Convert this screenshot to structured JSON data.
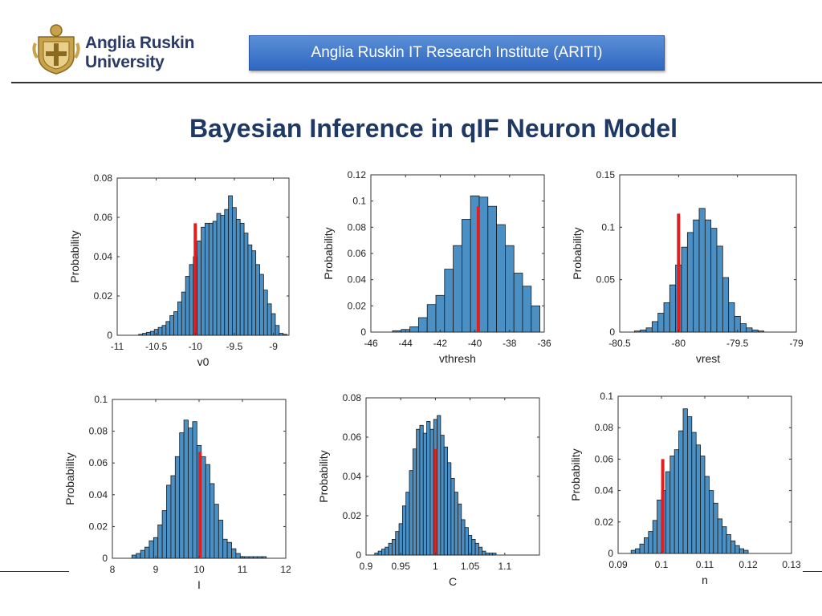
{
  "header": {
    "university": "Anglia Ruskin University",
    "university_line1": "Anglia Ruskin",
    "university_line2": "University",
    "banner": "Anglia Ruskin IT Research Institute (ARITI)"
  },
  "slide_title": "Bayesian Inference in qIF Neuron Model",
  "colors": {
    "bar_fill": "#4a90c4",
    "bar_edge": "#1a1a1a",
    "true_value": "#e02020",
    "title": "#1f3864"
  },
  "chart_data": [
    {
      "type": "bar",
      "xlabel": "v0",
      "ylabel": "Probability",
      "xlim": [
        -11,
        -8.8
      ],
      "ylim": [
        0,
        0.08
      ],
      "xticks": [
        -11,
        -10.5,
        -10,
        -9.5,
        -9
      ],
      "yticks": [
        0,
        0.02,
        0.04,
        0.06,
        0.08
      ],
      "bins": [
        -10.7,
        -10.65,
        -10.6,
        -10.55,
        -10.5,
        -10.45,
        -10.4,
        -10.35,
        -10.3,
        -10.25,
        -10.2,
        -10.15,
        -10.1,
        -10.05,
        -10.0,
        -9.95,
        -9.9,
        -9.85,
        -9.8,
        -9.75,
        -9.7,
        -9.65,
        -9.6,
        -9.55,
        -9.5,
        -9.45,
        -9.4,
        -9.35,
        -9.3,
        -9.25,
        -9.2,
        -9.15,
        -9.1,
        -9.05,
        -9.0,
        -8.95,
        -8.9,
        -8.85
      ],
      "bin_width": 0.05,
      "values": [
        0.0005,
        0.001,
        0.0015,
        0.002,
        0.003,
        0.004,
        0.005,
        0.007,
        0.01,
        0.012,
        0.017,
        0.022,
        0.03,
        0.036,
        0.04,
        0.048,
        0.055,
        0.057,
        0.057,
        0.058,
        0.062,
        0.061,
        0.064,
        0.071,
        0.065,
        0.059,
        0.057,
        0.052,
        0.046,
        0.043,
        0.036,
        0.031,
        0.023,
        0.016,
        0.011,
        0.005,
        0.001,
        0.0005
      ],
      "true_value": -10.0,
      "true_height": 0.057
    },
    {
      "type": "bar",
      "xlabel": "vthresh",
      "ylabel": "Probability",
      "xlim": [
        -46,
        -36
      ],
      "ylim": [
        0,
        0.12
      ],
      "xticks": [
        -46,
        -44,
        -42,
        -40,
        -38,
        -36
      ],
      "yticks": [
        0,
        0.02,
        0.04,
        0.06,
        0.08,
        0.1,
        0.12
      ],
      "bins": [
        -44.5,
        -44.0,
        -43.5,
        -43.0,
        -42.5,
        -42.0,
        -41.5,
        -41.0,
        -40.5,
        -40.0,
        -39.5,
        -39.0,
        -38.5,
        -38.0,
        -37.5,
        -37.0,
        -36.5
      ],
      "bin_width": 0.5,
      "values": [
        0.001,
        0.002,
        0.004,
        0.011,
        0.021,
        0.028,
        0.048,
        0.066,
        0.086,
        0.104,
        0.103,
        0.096,
        0.082,
        0.066,
        0.045,
        0.035,
        0.02
      ],
      "true_value": -39.8,
      "true_height": 0.096
    },
    {
      "type": "bar",
      "xlabel": "vrest",
      "ylabel": "Probability",
      "xlim": [
        -80.5,
        -79
      ],
      "ylim": [
        0,
        0.15
      ],
      "xticks": [
        -80.5,
        -80,
        -79.5,
        -79
      ],
      "yticks": [
        0,
        0.05,
        0.1,
        0.15
      ],
      "bins": [
        -80.35,
        -80.3,
        -80.25,
        -80.2,
        -80.15,
        -80.1,
        -80.05,
        -80.0,
        -79.95,
        -79.9,
        -79.85,
        -79.8,
        -79.75,
        -79.7,
        -79.65,
        -79.6,
        -79.55,
        -79.5,
        -79.45,
        -79.4,
        -79.35,
        -79.3
      ],
      "bin_width": 0.05,
      "values": [
        0.001,
        0.002,
        0.004,
        0.01,
        0.018,
        0.028,
        0.045,
        0.064,
        0.081,
        0.095,
        0.107,
        0.118,
        0.107,
        0.099,
        0.082,
        0.052,
        0.028,
        0.015,
        0.008,
        0.004,
        0.002,
        0.001
      ],
      "true_value": -80.0,
      "true_height": 0.113
    },
    {
      "type": "bar",
      "xlabel": "I",
      "ylabel": "Probability",
      "xlim": [
        8,
        12
      ],
      "ylim": [
        0,
        0.1
      ],
      "xticks": [
        8,
        9,
        10,
        11,
        12
      ],
      "yticks": [
        0,
        0.02,
        0.04,
        0.06,
        0.08,
        0.1
      ],
      "bins": [
        8.5,
        8.6,
        8.7,
        8.8,
        8.9,
        9.0,
        9.1,
        9.2,
        9.3,
        9.4,
        9.5,
        9.6,
        9.7,
        9.8,
        9.9,
        10.0,
        10.1,
        10.2,
        10.3,
        10.4,
        10.5,
        10.6,
        10.7,
        10.8,
        10.9,
        11.0,
        11.1,
        11.2,
        11.3,
        11.4,
        11.5
      ],
      "bin_width": 0.1,
      "values": [
        0.002,
        0.003,
        0.005,
        0.007,
        0.011,
        0.013,
        0.021,
        0.03,
        0.046,
        0.052,
        0.064,
        0.079,
        0.087,
        0.082,
        0.086,
        0.071,
        0.064,
        0.059,
        0.047,
        0.034,
        0.024,
        0.012,
        0.01,
        0.006,
        0.003,
        0.001,
        0.001,
        0.001,
        0.001,
        0.001,
        0.001
      ],
      "true_value": 10.02,
      "true_height": 0.067
    },
    {
      "type": "bar",
      "xlabel": "C",
      "ylabel": "Probability",
      "xlim": [
        0.9,
        1.15
      ],
      "ylim": [
        0,
        0.08
      ],
      "xticks": [
        0.9,
        0.95,
        1,
        1.05,
        1.1
      ],
      "yticks": [
        0,
        0.02,
        0.04,
        0.06,
        0.08
      ],
      "bins": [
        0.915,
        0.92,
        0.925,
        0.93,
        0.935,
        0.94,
        0.945,
        0.95,
        0.955,
        0.96,
        0.965,
        0.97,
        0.975,
        0.98,
        0.985,
        0.99,
        0.995,
        1.0,
        1.005,
        1.01,
        1.015,
        1.02,
        1.025,
        1.03,
        1.035,
        1.04,
        1.045,
        1.05,
        1.055,
        1.06,
        1.065,
        1.07,
        1.075,
        1.08,
        1.085
      ],
      "bin_width": 0.005,
      "values": [
        0.001,
        0.002,
        0.003,
        0.004,
        0.006,
        0.008,
        0.012,
        0.016,
        0.025,
        0.032,
        0.043,
        0.054,
        0.064,
        0.066,
        0.062,
        0.068,
        0.064,
        0.069,
        0.071,
        0.061,
        0.055,
        0.047,
        0.039,
        0.032,
        0.026,
        0.018,
        0.014,
        0.01,
        0.008,
        0.006,
        0.004,
        0.002,
        0.001,
        0.001,
        0.001
      ],
      "true_value": 1.0,
      "true_height": 0.054
    },
    {
      "type": "bar",
      "xlabel": "n",
      "ylabel": "Probability",
      "xlim": [
        0.09,
        0.13
      ],
      "ylim": [
        0,
        0.1
      ],
      "xticks": [
        0.09,
        0.1,
        0.11,
        0.12,
        0.13
      ],
      "yticks": [
        0,
        0.02,
        0.04,
        0.06,
        0.08,
        0.1
      ],
      "bins": [
        0.0935,
        0.0945,
        0.0955,
        0.0965,
        0.0975,
        0.0985,
        0.0995,
        0.1005,
        0.1015,
        0.1025,
        0.1035,
        0.1045,
        0.1055,
        0.1065,
        0.1075,
        0.1085,
        0.1095,
        0.1105,
        0.1115,
        0.1125,
        0.1135,
        0.1145,
        0.1155,
        0.1165,
        0.1175,
        0.1185,
        0.1195
      ],
      "bin_width": 0.001,
      "values": [
        0.002,
        0.003,
        0.006,
        0.01,
        0.014,
        0.021,
        0.034,
        0.04,
        0.052,
        0.062,
        0.066,
        0.078,
        0.092,
        0.087,
        0.077,
        0.069,
        0.062,
        0.049,
        0.04,
        0.032,
        0.022,
        0.017,
        0.012,
        0.008,
        0.005,
        0.003,
        0.002
      ],
      "true_value": 0.1003,
      "true_height": 0.06
    }
  ]
}
